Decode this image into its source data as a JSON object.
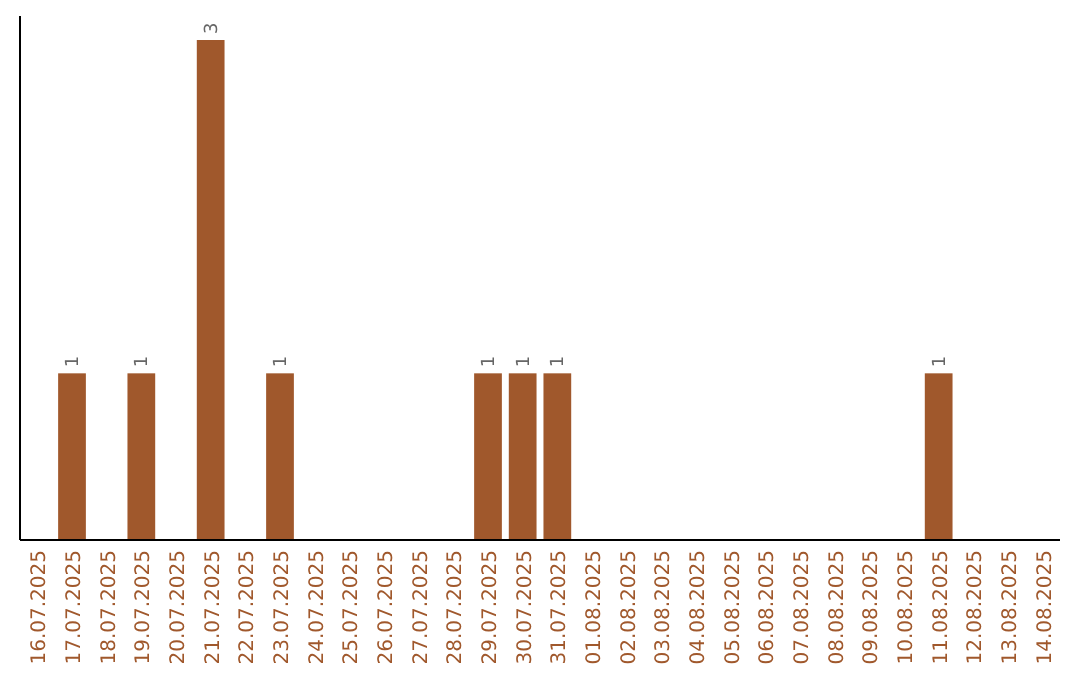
{
  "chart_data": {
    "type": "bar",
    "categories": [
      "16.07.2025",
      "17.07.2025",
      "18.07.2025",
      "19.07.2025",
      "20.07.2025",
      "21.07.2025",
      "22.07.2025",
      "23.07.2025",
      "24.07.2025",
      "25.07.2025",
      "26.07.2025",
      "27.07.2025",
      "28.07.2025",
      "29.07.2025",
      "30.07.2025",
      "31.07.2025",
      "01.08.2025",
      "02.08.2025",
      "03.08.2025",
      "04.08.2025",
      "05.08.2025",
      "06.08.2025",
      "07.08.2025",
      "08.08.2025",
      "09.08.2025",
      "10.08.2025",
      "11.08.2025",
      "12.08.2025",
      "13.08.2025",
      "14.08.2025"
    ],
    "values": [
      0,
      1,
      0,
      1,
      0,
      3,
      0,
      1,
      0,
      0,
      0,
      0,
      0,
      1,
      1,
      1,
      0,
      0,
      0,
      0,
      0,
      0,
      0,
      0,
      0,
      0,
      1,
      0,
      0,
      0
    ],
    "value_labels": [
      null,
      "1",
      null,
      "1",
      null,
      "3",
      null,
      "1",
      null,
      null,
      null,
      null,
      null,
      "1",
      "1",
      "1",
      null,
      null,
      null,
      null,
      null,
      null,
      null,
      null,
      null,
      null,
      "1",
      null,
      null,
      null
    ],
    "color": "#a0582c"
  }
}
